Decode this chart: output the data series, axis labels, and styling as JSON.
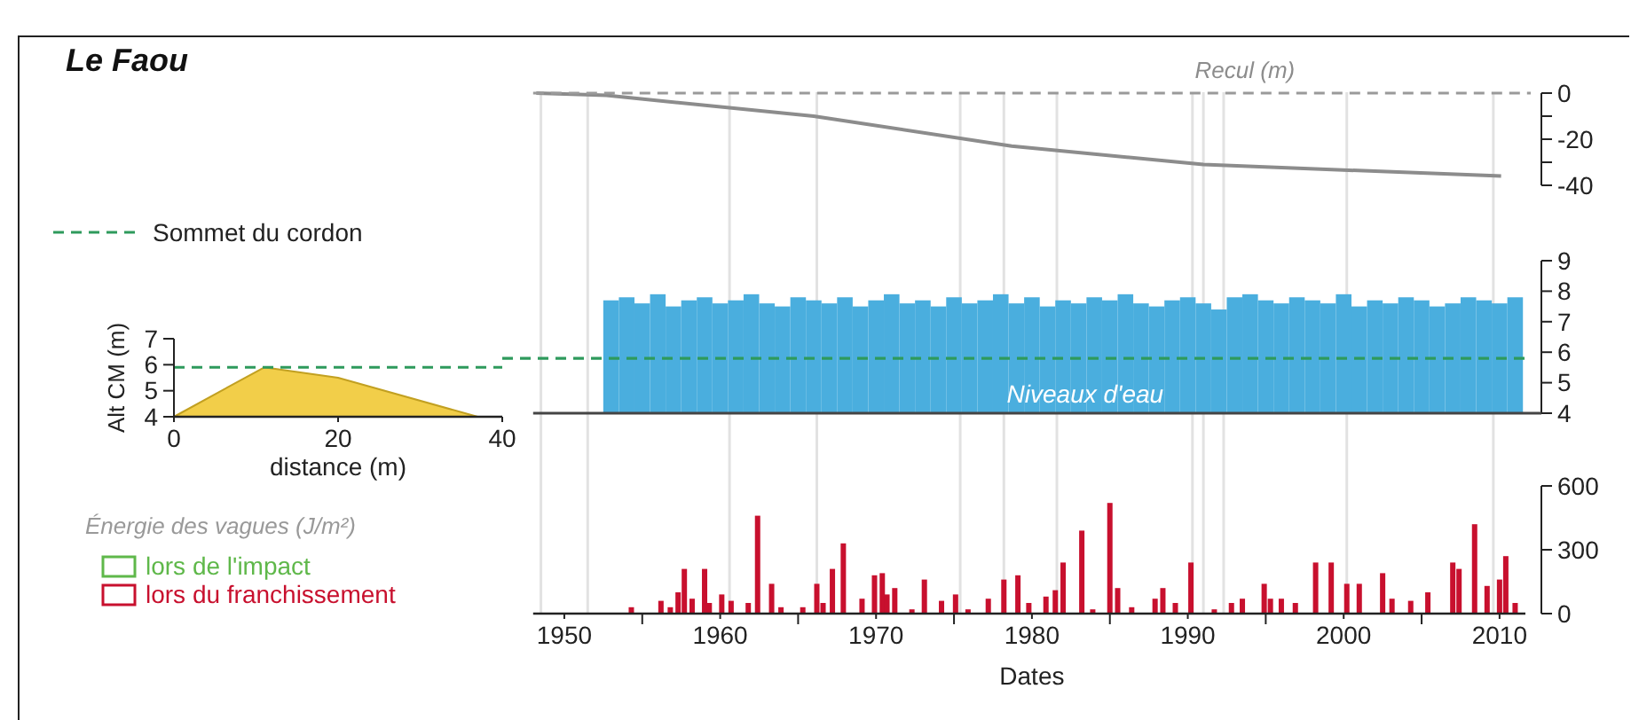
{
  "chart_data": [
    {
      "type": "line",
      "ylabel": "Recul (m)",
      "x": [
        1948.2,
        1952.7,
        1966,
        1978.7,
        1991,
        2010.1
      ],
      "xlim": [
        1948,
        2012
      ],
      "ylim": [
        -40,
        0
      ],
      "yticks": [
        0,
        {
          "value": -10,
          "label": null
        },
        -20,
        {
          "value": -30,
          "label": null
        },
        -40
      ],
      "tick_labels": "y",
      "series": [
        {
          "color": "#8c8c8c",
          "values": [
            0,
            -1,
            -10,
            -23,
            -31,
            -36
          ]
        }
      ],
      "ref_lines": [
        {
          "axis": "y",
          "value": 0,
          "color": "#9a9a9a",
          "line_style": "dashed"
        },
        {
          "axis": "x",
          "value": 1948.5,
          "color": "#e2e2e2"
        },
        {
          "axis": "x",
          "value": 1951.5,
          "color": "#e2e2e2"
        },
        {
          "axis": "x",
          "value": 1960.6,
          "color": "#e2e2e2"
        },
        {
          "axis": "x",
          "value": 1966.2,
          "color": "#e2e2e2"
        },
        {
          "axis": "x",
          "value": 1975.4,
          "color": "#e2e2e2"
        },
        {
          "axis": "x",
          "value": 1978.2,
          "color": "#e2e2e2"
        },
        {
          "axis": "x",
          "value": 1981.6,
          "color": "#e2e2e2"
        },
        {
          "axis": "x",
          "value": 1990.3,
          "color": "#e2e2e2"
        },
        {
          "axis": "x",
          "value": 1991,
          "color": "#e2e2e2"
        },
        {
          "axis": "x",
          "value": 1992.3,
          "color": "#e2e2e2"
        },
        {
          "axis": "x",
          "value": 2000.2,
          "color": "#e2e2e2"
        },
        {
          "axis": "x",
          "value": 2009.6,
          "color": "#e2e2e2"
        }
      ]
    },
    {
      "type": "bar",
      "ylabel": "Niveaux d'eau",
      "xlim": [
        1948,
        2012
      ],
      "ylim": [
        4,
        9
      ],
      "yticks": [
        4,
        5,
        6,
        7,
        8,
        9
      ],
      "tick_labels": "y",
      "x": [
        1953,
        1954,
        1955,
        1956,
        1957,
        1958,
        1959,
        1960,
        1961,
        1962,
        1963,
        1964,
        1965,
        1966,
        1967,
        1968,
        1969,
        1970,
        1971,
        1972,
        1973,
        1974,
        1975,
        1976,
        1977,
        1978,
        1979,
        1980,
        1981,
        1982,
        1983,
        1984,
        1985,
        1986,
        1987,
        1988,
        1989,
        1990,
        1991,
        1992,
        1993,
        1994,
        1995,
        1996,
        1997,
        1998,
        1999,
        2000,
        2001,
        2002,
        2003,
        2004,
        2005,
        2006,
        2007,
        2008,
        2009,
        2010,
        2011
      ],
      "series": [
        {
          "color": "#4aaede",
          "values": [
            7.7,
            7.8,
            7.6,
            7.9,
            7.5,
            7.7,
            7.8,
            7.6,
            7.7,
            7.9,
            7.6,
            7.5,
            7.8,
            7.7,
            7.6,
            7.8,
            7.5,
            7.7,
            7.9,
            7.6,
            7.7,
            7.5,
            7.8,
            7.6,
            7.7,
            7.9,
            7.6,
            7.8,
            7.5,
            7.7,
            7.6,
            7.8,
            7.7,
            7.9,
            7.6,
            7.5,
            7.7,
            7.8,
            7.6,
            7.4,
            7.8,
            7.9,
            7.7,
            7.6,
            7.8,
            7.7,
            7.6,
            7.9,
            7.5,
            7.7,
            7.6,
            7.8,
            7.7,
            7.5,
            7.6,
            7.8,
            7.7,
            7.6,
            7.8
          ]
        }
      ],
      "ref_lines": [
        {
          "axis": "y",
          "value": 5.8,
          "label": "Sommet du cordon",
          "color": "#2e9a5c",
          "line_style": "dashed"
        },
        {
          "axis": "x",
          "value": 1948.5,
          "color": "#e2e2e2"
        },
        {
          "axis": "x",
          "value": 1951.5,
          "color": "#e2e2e2"
        },
        {
          "axis": "x",
          "value": 1960.6,
          "color": "#e2e2e2"
        },
        {
          "axis": "x",
          "value": 1966.2,
          "color": "#e2e2e2"
        },
        {
          "axis": "x",
          "value": 1975.4,
          "color": "#e2e2e2"
        },
        {
          "axis": "x",
          "value": 1978.2,
          "color": "#e2e2e2"
        },
        {
          "axis": "x",
          "value": 1981.6,
          "color": "#e2e2e2"
        },
        {
          "axis": "x",
          "value": 1990.3,
          "color": "#e2e2e2"
        },
        {
          "axis": "x",
          "value": 1991,
          "color": "#e2e2e2"
        },
        {
          "axis": "x",
          "value": 1992.3,
          "color": "#e2e2e2"
        },
        {
          "axis": "x",
          "value": 2000.2,
          "color": "#e2e2e2"
        },
        {
          "axis": "x",
          "value": 2009.6,
          "color": "#e2e2e2"
        }
      ]
    },
    {
      "type": "area",
      "title": "Le Faou",
      "xlabel": "distance (m)",
      "ylabel": "Alt CM (m)",
      "x": [
        0,
        11,
        20,
        37
      ],
      "xlim": [
        0,
        40
      ],
      "xticks": [
        0,
        20,
        40
      ],
      "ylim": [
        4,
        7
      ],
      "yticks": [
        4,
        5,
        6,
        7
      ],
      "series": [
        {
          "color": "#f0c629",
          "values": [
            4,
            5.9,
            5.5,
            4
          ]
        }
      ],
      "ref_lines": [
        {
          "axis": "y",
          "value": 5.9,
          "color": "#2e9a5c",
          "line_style": "dashed"
        }
      ]
    },
    {
      "type": "bar",
      "xlabel": "Dates",
      "legend_title": "Énergie des vagues (J/m²)",
      "legend": "left",
      "xlim": [
        1948,
        2012
      ],
      "xticks": [
        1950,
        {
          "value": 1955,
          "label": null
        },
        1960,
        {
          "value": 1965,
          "label": null
        },
        1970,
        {
          "value": 1975,
          "label": null
        },
        1980,
        {
          "value": 1985,
          "label": null
        },
        1990,
        {
          "value": 1995,
          "label": null
        },
        2000,
        {
          "value": 2005,
          "label": null
        },
        2010
      ],
      "ylim": [
        0,
        600
      ],
      "yticks": [
        0,
        300,
        600
      ],
      "series": [
        {
          "name": "lors de l'impact",
          "color": "#5fb84a"
        },
        {
          "name": "lors du franchissement",
          "color": "#c8102e",
          "x": [
            1954.3,
            1956.2,
            1956.8,
            1957.3,
            1957.7,
            1958.2,
            1959,
            1959.3,
            1960.1,
            1960.7,
            1961.8,
            1962.4,
            1963.3,
            1963.9,
            1965.3,
            1966.2,
            1966.6,
            1967.2,
            1967.9,
            1969.1,
            1969.9,
            1970.4,
            1970.7,
            1971.2,
            1972.3,
            1973.1,
            1974.2,
            1975.1,
            1975.9,
            1977.2,
            1978.2,
            1979.1,
            1979.8,
            1980.9,
            1981.5,
            1982,
            1983.2,
            1983.9,
            1985,
            1985.5,
            1986.4,
            1987.9,
            1988.4,
            1989.2,
            1990.2,
            1991.7,
            1992.8,
            1993.5,
            1994.9,
            1995.3,
            1996,
            1996.9,
            1998.2,
            1999.2,
            2000.2,
            2001,
            2002.5,
            2003.1,
            2004.3,
            2005.4,
            2007,
            2007.4,
            2008.4,
            2009.2,
            2010,
            2010.4,
            2011
          ],
          "values": [
            30,
            60,
            30,
            100,
            210,
            70,
            210,
            50,
            90,
            60,
            50,
            460,
            140,
            30,
            30,
            140,
            50,
            210,
            330,
            70,
            180,
            190,
            90,
            120,
            20,
            160,
            60,
            90,
            20,
            70,
            160,
            180,
            50,
            80,
            110,
            240,
            390,
            20,
            520,
            120,
            30,
            70,
            120,
            50,
            240,
            20,
            50,
            70,
            140,
            70,
            70,
            50,
            240,
            240,
            140,
            140,
            190,
            70,
            60,
            100,
            240,
            210,
            420,
            130,
            160,
            270,
            50
          ]
        }
      ],
      "ref_lines": [
        {
          "axis": "x",
          "value": 1948.5,
          "color": "#e2e2e2"
        },
        {
          "axis": "x",
          "value": 1951.5,
          "color": "#e2e2e2"
        },
        {
          "axis": "x",
          "value": 1960.6,
          "color": "#e2e2e2"
        },
        {
          "axis": "x",
          "value": 1966.2,
          "color": "#e2e2e2"
        },
        {
          "axis": "x",
          "value": 1975.4,
          "color": "#e2e2e2"
        },
        {
          "axis": "x",
          "value": 1978.2,
          "color": "#e2e2e2"
        },
        {
          "axis": "x",
          "value": 1981.6,
          "color": "#e2e2e2"
        },
        {
          "axis": "x",
          "value": 1990.3,
          "color": "#e2e2e2"
        },
        {
          "axis": "x",
          "value": 1991,
          "color": "#e2e2e2"
        },
        {
          "axis": "x",
          "value": 1992.3,
          "color": "#e2e2e2"
        },
        {
          "axis": "x",
          "value": 2000.2,
          "color": "#e2e2e2"
        },
        {
          "axis": "x",
          "value": 2009.6,
          "color": "#e2e2e2"
        }
      ]
    }
  ]
}
